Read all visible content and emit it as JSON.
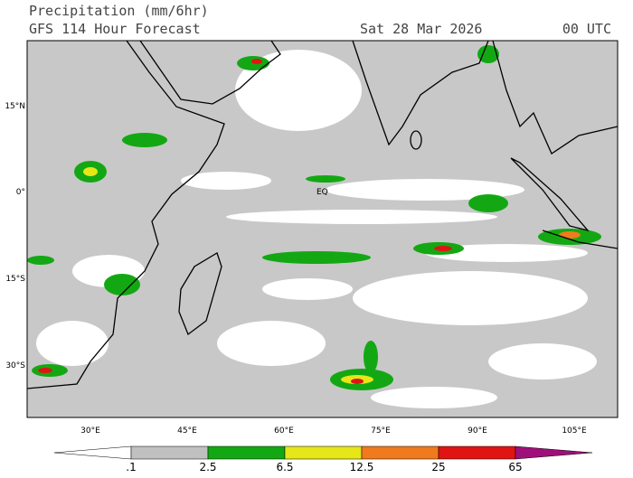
{
  "header": {
    "title": "Precipitation (mm/6hr)",
    "subtitle": "GFS 114 Hour Forecast",
    "date": "Sat 28 Mar 2026",
    "time": "00 UTC"
  },
  "map": {
    "lat_labels": [
      "15°N",
      "0°",
      "15°S",
      "30°S"
    ],
    "lon_labels": [
      "30°E",
      "45°E",
      "60°E",
      "75°E",
      "90°E",
      "105°E"
    ],
    "equator_label": "EQ"
  },
  "colorbar": {
    "labels": [
      ".1",
      "2.5",
      "6.5",
      "12.5",
      "25",
      "65"
    ],
    "colors": [
      "#ffffff",
      "#c0c0c0",
      "#13a813",
      "#e6e619",
      "#f07a1e",
      "#e11414",
      "#a0107a"
    ]
  }
}
